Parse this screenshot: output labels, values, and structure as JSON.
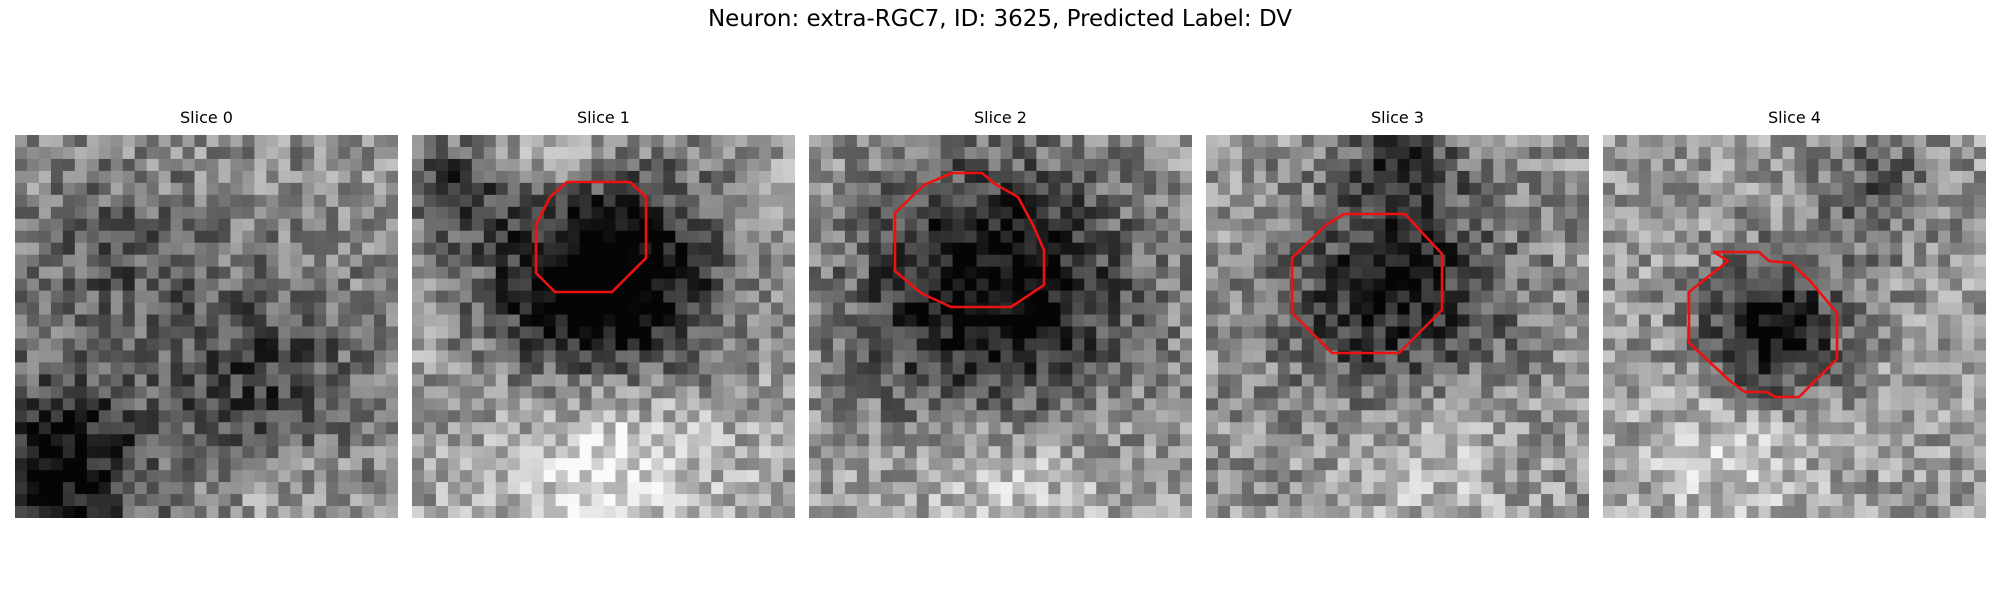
{
  "figure": {
    "title": "Neuron: extra-RGC7, ID: 3625, Predicted Label: DV"
  },
  "panels": [
    {
      "title": "Slice 0",
      "has_contour": false
    },
    {
      "title": "Slice 1",
      "has_contour": true
    },
    {
      "title": "Slice 2",
      "has_contour": true
    },
    {
      "title": "Slice 3",
      "has_contour": true
    },
    {
      "title": "Slice 4",
      "has_contour": true
    }
  ],
  "colors": {
    "contour": "#ee1111",
    "background": "#ffffff"
  }
}
